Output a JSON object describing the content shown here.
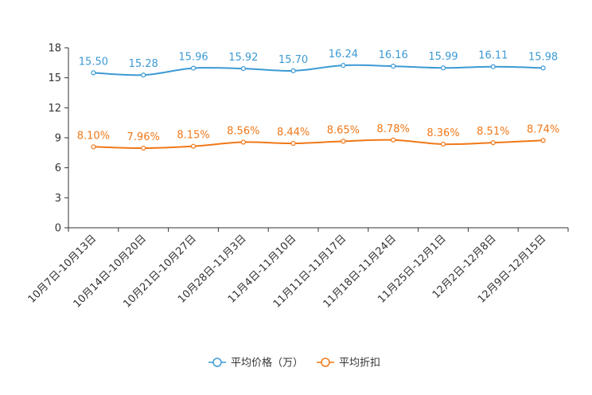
{
  "chart_data": {
    "type": "line",
    "title": "",
    "xlabel": "",
    "ylabel": "",
    "ylim": [
      0,
      18
    ],
    "yticks": [
      "0",
      "3",
      "6",
      "9",
      "12",
      "15",
      "18"
    ],
    "categories": [
      "10月7日-10月13日",
      "10月14日-10月20日",
      "10月21日-10月27日",
      "10月28日-11月3日",
      "11月4日-11月10日",
      "11月11日-11月17日",
      "11月18日-11月24日",
      "11月25日-12月1日",
      "12月2日-12月8日",
      "12月9日-12月15日"
    ],
    "series": [
      {
        "name": "平均价格（万）",
        "color": "#3c9ad4",
        "values": [
          15.5,
          15.28,
          15.96,
          15.92,
          15.7,
          16.24,
          16.16,
          15.99,
          16.11,
          15.98
        ],
        "labels": [
          "15.50",
          "15.28",
          "15.96",
          "15.92",
          "15.70",
          "16.24",
          "16.16",
          "15.99",
          "16.11",
          "15.98"
        ]
      },
      {
        "name": "平均折扣",
        "color": "#f07818",
        "values": [
          8.1,
          7.96,
          8.15,
          8.56,
          8.44,
          8.65,
          8.78,
          8.36,
          8.51,
          8.74
        ],
        "labels": [
          "8.10%",
          "7.96%",
          "8.15%",
          "8.56%",
          "8.44%",
          "8.65%",
          "8.78%",
          "8.36%",
          "8.51%",
          "8.74%"
        ]
      }
    ],
    "legend": "bottom-center"
  }
}
